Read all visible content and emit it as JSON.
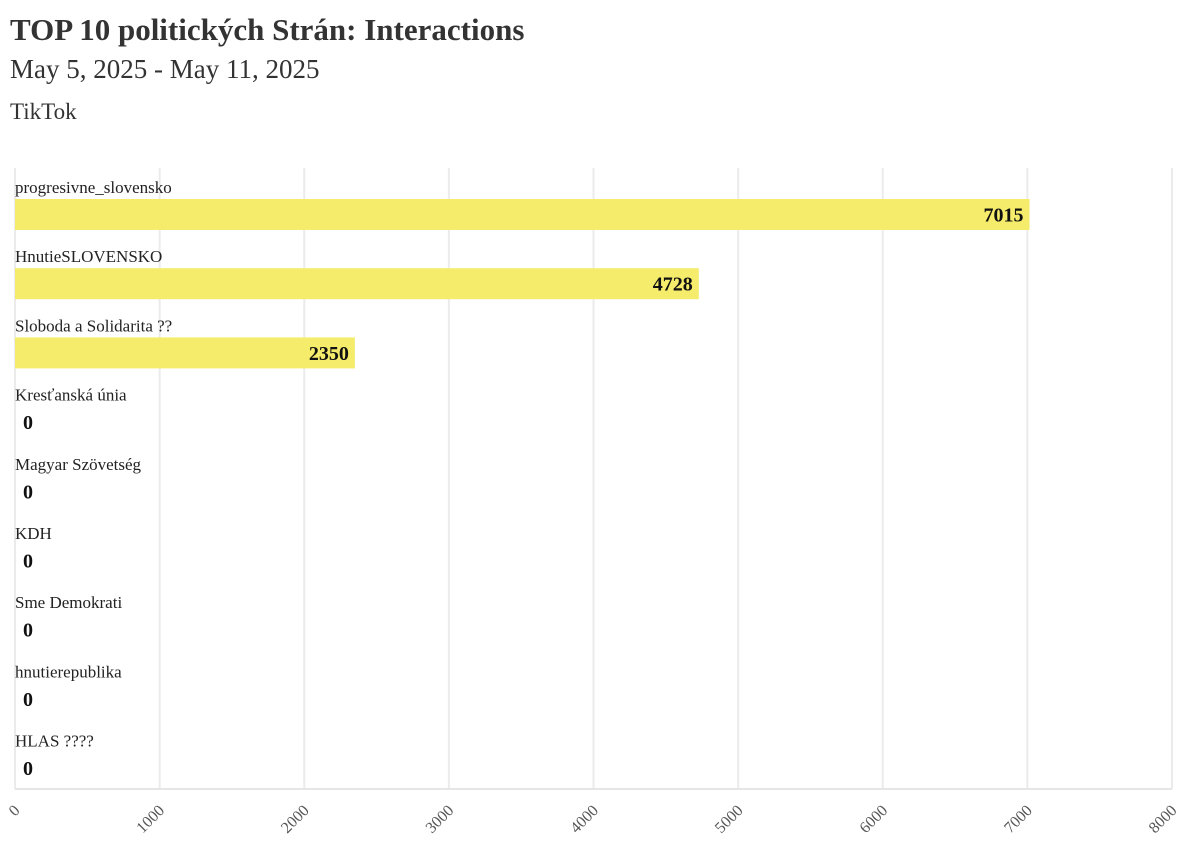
{
  "header": {
    "title": "TOP 10 politických Strán: Interactions",
    "subtitle": "May 5, 2025 - May 11, 2025",
    "platform": "TikTok"
  },
  "chart_data": {
    "type": "bar",
    "orientation": "horizontal",
    "categories": [
      "progresivne_slovensko",
      "HnutieSLOVENSKO",
      "Sloboda a Solidarita ??",
      "Kresťanská únia",
      "Magyar Szövetség",
      "KDH",
      "Sme Demokrati",
      "hnutierepublika",
      "HLAS ????"
    ],
    "values": [
      7015,
      4728,
      2350,
      0,
      0,
      0,
      0,
      0,
      0
    ],
    "xlim": [
      0,
      8000
    ],
    "xticks": [
      0,
      1000,
      2000,
      3000,
      4000,
      5000,
      6000,
      7000,
      8000
    ],
    "grid": "vertical",
    "bar_color": "#f5ec6b",
    "grid_color": "#ebebeb"
  }
}
